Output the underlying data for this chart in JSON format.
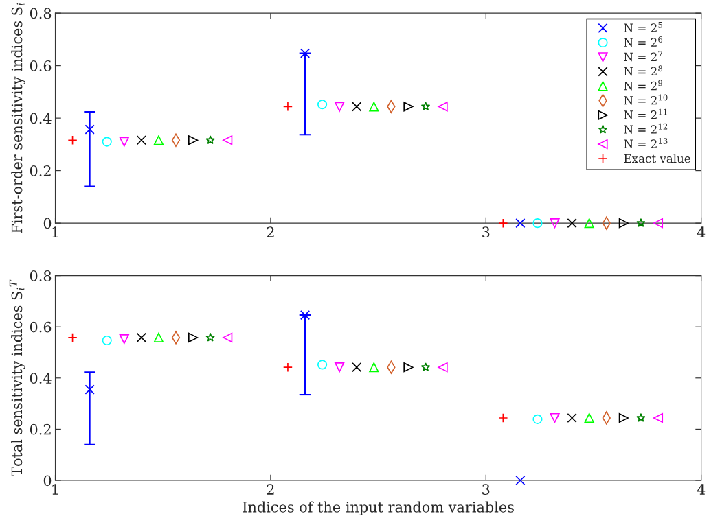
{
  "chart_data": [
    {
      "type": "scatter",
      "ylabel": "First-order sensitivity indices S$_{i}$",
      "xlim": [
        1,
        4
      ],
      "xticks": [
        1,
        2,
        3,
        4
      ],
      "ylim": [
        0,
        0.8
      ],
      "yticks": [
        0,
        0.2,
        0.4,
        0.6,
        0.8
      ],
      "grid": false,
      "legend": "top right",
      "series": [
        {
          "name": "N = 2$^{5}$",
          "color": "#0000ff",
          "marker": "cross",
          "x": [
            1.16,
            2.16,
            3.16
          ],
          "values": [
            0.357,
            0.647,
            0
          ],
          "errors": [
            [
              0.14,
              0.424
            ],
            [
              0.337,
              0.647
            ],
            null
          ]
        },
        {
          "name": "N = 2$^{6}$",
          "color": "#00ffff",
          "marker": "circle",
          "x": [
            1.24,
            2.24,
            3.24
          ],
          "values": [
            0.31,
            0.452,
            0
          ]
        },
        {
          "name": "N = 2$^{7}$",
          "color": "#ff00ff",
          "marker": "triangle-down",
          "x": [
            1.32,
            2.32,
            3.32
          ],
          "values": [
            0.31,
            0.443,
            0
          ]
        },
        {
          "name": "N = 2$^{8}$",
          "color": "#000000",
          "marker": "cross",
          "x": [
            1.4,
            2.4,
            3.4
          ],
          "values": [
            0.316,
            0.444,
            0
          ]
        },
        {
          "name": "N = 2$^{9}$",
          "color": "#00ff00",
          "marker": "triangle",
          "x": [
            1.48,
            2.48,
            3.48
          ],
          "values": [
            0.316,
            0.444,
            0
          ]
        },
        {
          "name": "N = 2$^{10}$",
          "color": "#d2602a",
          "marker": "diamond",
          "x": [
            1.56,
            2.56,
            3.56
          ],
          "values": [
            0.316,
            0.444,
            0
          ]
        },
        {
          "name": "N = 2$^{11}$",
          "color": "#000000",
          "marker": "triangle-right",
          "x": [
            1.64,
            2.64,
            3.64
          ],
          "values": [
            0.316,
            0.444,
            0
          ]
        },
        {
          "name": "N = 2$^{12}$",
          "color": "#008000",
          "marker": "star",
          "x": [
            1.72,
            2.72,
            3.72
          ],
          "values": [
            0.316,
            0.444,
            0
          ]
        },
        {
          "name": "N = 2$^{13}$",
          "color": "#ff00ff",
          "marker": "triangle-left",
          "x": [
            1.8,
            2.8,
            3.8
          ],
          "values": [
            0.316,
            0.444,
            0
          ]
        },
        {
          "name": "Exact value",
          "color": "#ff0000",
          "marker": "plus",
          "x": [
            1.08,
            2.08,
            3.08
          ],
          "values": [
            0.316,
            0.444,
            0
          ]
        }
      ]
    },
    {
      "type": "scatter",
      "xlabel": "Indices of the input random variables",
      "ylabel": "Total sensitivity indices S$_{i}$$^{T}$",
      "xlim": [
        1,
        4
      ],
      "xticks": [
        1,
        2,
        3,
        4
      ],
      "ylim": [
        0,
        0.8
      ],
      "yticks": [
        0,
        0.2,
        0.4,
        0.6,
        0.8
      ],
      "grid": false,
      "series": [
        {
          "color": "#0000ff",
          "marker": "cross",
          "x": [
            1.16,
            2.16,
            3.16
          ],
          "values": [
            0.355,
            0.646,
            0
          ],
          "errors": [
            [
              0.14,
              0.423
            ],
            [
              0.335,
              0.646
            ],
            null
          ]
        },
        {
          "color": "#00ffff",
          "marker": "circle",
          "x": [
            1.24,
            2.24,
            3.24
          ],
          "values": [
            0.547,
            0.452,
            0.239
          ]
        },
        {
          "color": "#ff00ff",
          "marker": "triangle-down",
          "x": [
            1.32,
            2.32,
            3.32
          ],
          "values": [
            0.552,
            0.442,
            0.244
          ]
        },
        {
          "color": "#000000",
          "marker": "cross",
          "x": [
            1.4,
            2.4,
            3.4
          ],
          "values": [
            0.558,
            0.442,
            0.244
          ]
        },
        {
          "color": "#00ff00",
          "marker": "triangle",
          "x": [
            1.48,
            2.48,
            3.48
          ],
          "values": [
            0.558,
            0.442,
            0.244
          ]
        },
        {
          "color": "#d2602a",
          "marker": "diamond",
          "x": [
            1.56,
            2.56,
            3.56
          ],
          "values": [
            0.558,
            0.442,
            0.244
          ]
        },
        {
          "color": "#000000",
          "marker": "triangle-right",
          "x": [
            1.64,
            2.64,
            3.64
          ],
          "values": [
            0.558,
            0.442,
            0.244
          ]
        },
        {
          "color": "#008000",
          "marker": "star",
          "x": [
            1.72,
            2.72,
            3.72
          ],
          "values": [
            0.558,
            0.442,
            0.244
          ]
        },
        {
          "color": "#ff00ff",
          "marker": "triangle-left",
          "x": [
            1.8,
            2.8,
            3.8
          ],
          "values": [
            0.558,
            0.442,
            0.244
          ]
        },
        {
          "color": "#ff0000",
          "marker": "plus",
          "x": [
            1.08,
            2.08,
            3.08
          ],
          "values": [
            0.558,
            0.442,
            0.244
          ]
        }
      ]
    }
  ]
}
